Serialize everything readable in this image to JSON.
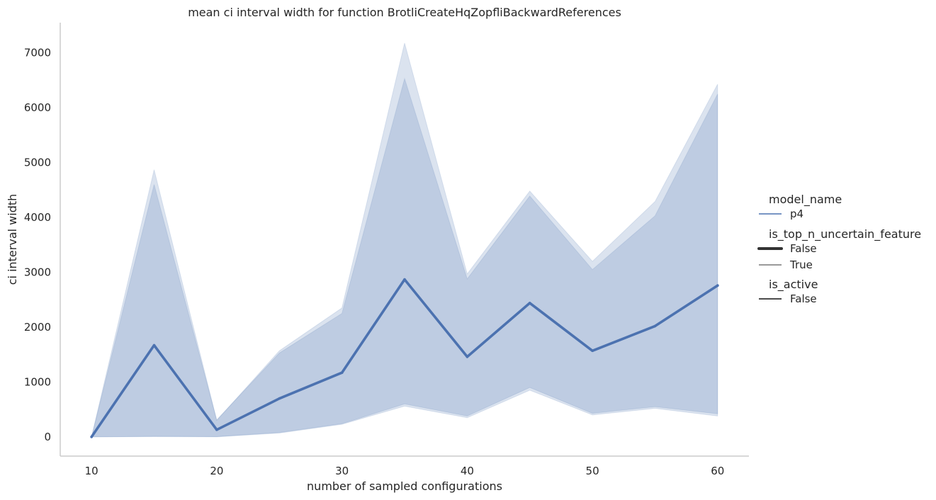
{
  "chart_data": {
    "type": "line",
    "title": "mean ci interval width for function BrotliCreateHqZopfliBackwardReferences",
    "xlabel": "number of sampled configurations",
    "ylabel": "ci interval width",
    "x": [
      10,
      15,
      20,
      25,
      30,
      35,
      40,
      45,
      50,
      55,
      60
    ],
    "xticks": [
      10,
      20,
      30,
      40,
      50,
      60
    ],
    "yticks": [
      0,
      1000,
      2000,
      3000,
      4000,
      5000,
      6000,
      7000
    ],
    "xlim": [
      7.5,
      62.5
    ],
    "ylim": [
      -350,
      7550
    ],
    "grid": false,
    "legend_position": "right",
    "series": [
      {
        "name": "False",
        "y": [
          0,
          1670,
          130,
          700,
          1170,
          2870,
          1460,
          2440,
          1570,
          2020,
          2760
        ],
        "band_lower": [
          0,
          10,
          5,
          80,
          240,
          600,
          380,
          900,
          430,
          550,
          420
        ],
        "band_upper": [
          0,
          4600,
          310,
          1530,
          2250,
          6530,
          2880,
          4390,
          3050,
          4030,
          6250
        ],
        "color": "#4c72b0",
        "line_style": "thick"
      },
      {
        "name": "True",
        "band_lower": [
          0,
          5,
          0,
          70,
          230,
          560,
          350,
          850,
          400,
          520,
          380
        ],
        "band_upper": [
          0,
          4870,
          300,
          1570,
          2350,
          7180,
          2970,
          4480,
          3200,
          4290,
          6430
        ],
        "color": "#4c72b0",
        "line_style": "thin"
      }
    ],
    "legend": {
      "sections": [
        {
          "title": "model_name",
          "entries": [
            {
              "label": "p4",
              "style": "color"
            }
          ]
        },
        {
          "title": "is_top_n_uncertain_feature",
          "entries": [
            {
              "label": "False",
              "style": "thick"
            },
            {
              "label": "True",
              "style": "thin"
            }
          ]
        },
        {
          "title": "is_active",
          "entries": [
            {
              "label": "False",
              "style": "solid"
            }
          ]
        }
      ]
    }
  }
}
